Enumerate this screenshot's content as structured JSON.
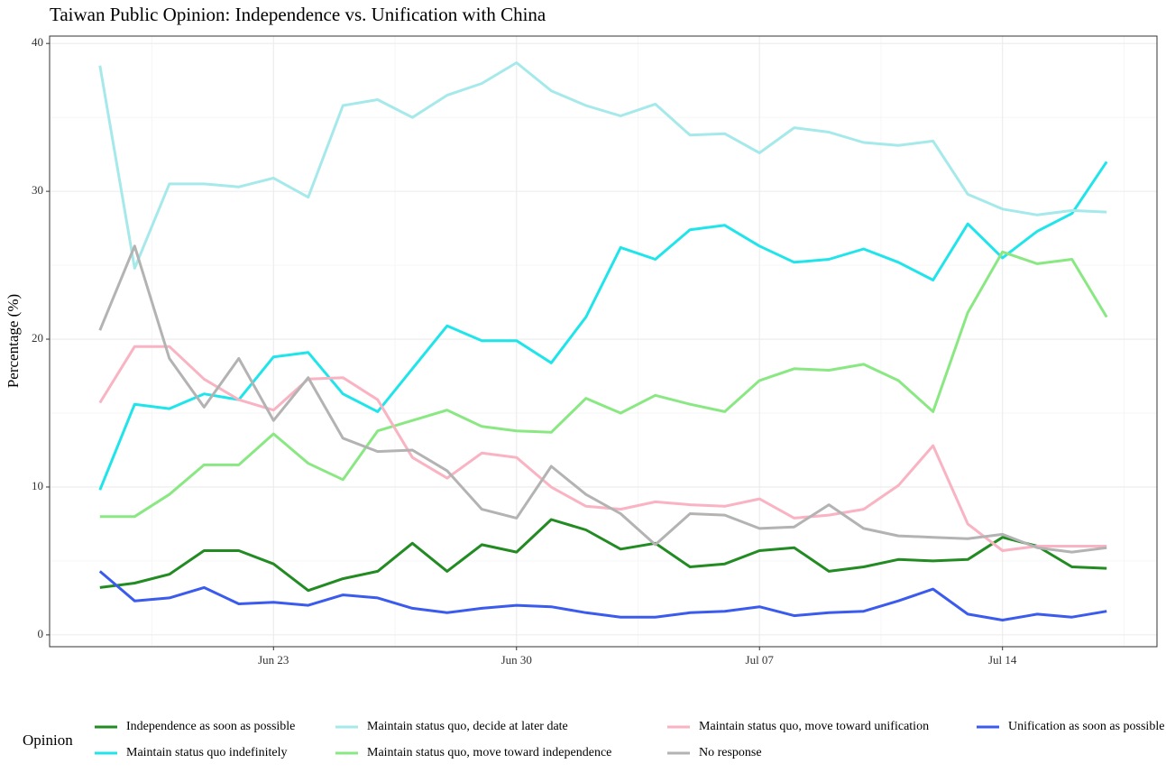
{
  "chart_data": {
    "type": "line",
    "title": "Taiwan Public Opinion: Independence vs. Unification with China",
    "ylabel": "Percentage (%)",
    "legend_title": "Opinion",
    "legend": "bottom",
    "grid": true,
    "x": [
      "Jun 18",
      "Jun 19",
      "Jun 20",
      "Jun 21",
      "Jun 22",
      "Jun 23",
      "Jun 24",
      "Jun 25",
      "Jun 26",
      "Jun 27",
      "Jun 28",
      "Jun 29",
      "Jun 30",
      "Jul 01",
      "Jul 02",
      "Jul 03",
      "Jul 04",
      "Jul 05",
      "Jul 06",
      "Jul 07",
      "Jul 08",
      "Jul 09",
      "Jul 10",
      "Jul 11",
      "Jul 12",
      "Jul 13",
      "Jul 14",
      "Jul 15",
      "Jul 16",
      "Jul 17"
    ],
    "xticks": [
      "Jun 23",
      "Jun 30",
      "Jul 07",
      "Jul 14"
    ],
    "ylim": [
      -0.8,
      40.5
    ],
    "yticks": [
      0,
      10,
      20,
      30,
      40
    ],
    "series": [
      {
        "name": "Independence as soon as possible",
        "color": "#228B22",
        "values": [
          3.2,
          3.5,
          4.1,
          5.7,
          5.7,
          4.8,
          3.0,
          3.8,
          4.3,
          6.2,
          4.3,
          6.1,
          5.6,
          7.8,
          7.1,
          5.8,
          6.2,
          4.6,
          4.8,
          5.7,
          5.9,
          4.3,
          4.6,
          5.1,
          5.0,
          5.1,
          6.6,
          6.0,
          4.6,
          4.5
        ]
      },
      {
        "name": "Maintain status quo indefinitely",
        "color": "#1FE5EB",
        "values": [
          9.8,
          15.6,
          15.3,
          16.3,
          15.9,
          18.8,
          19.1,
          16.3,
          15.1,
          18.0,
          20.9,
          19.9,
          19.9,
          18.4,
          21.5,
          26.2,
          25.4,
          27.4,
          27.7,
          26.3,
          25.2,
          25.4,
          26.1,
          25.2,
          24.0,
          27.8,
          25.5,
          27.3,
          28.5,
          32.0
        ]
      },
      {
        "name": "Maintain status quo, decide at later date",
        "color": "#A6E9EA",
        "values": [
          38.5,
          24.8,
          30.5,
          30.5,
          30.3,
          30.9,
          29.6,
          35.8,
          36.2,
          35.0,
          36.5,
          37.3,
          38.7,
          36.8,
          35.8,
          35.1,
          35.9,
          33.8,
          33.9,
          32.6,
          34.3,
          34.0,
          33.3,
          33.1,
          33.4,
          29.8,
          28.8,
          28.4,
          28.7,
          28.6
        ]
      },
      {
        "name": "Maintain status quo, move toward independence",
        "color": "#8AE883",
        "values": [
          8.0,
          8.0,
          9.5,
          11.5,
          11.5,
          13.6,
          11.6,
          10.5,
          13.8,
          14.5,
          15.2,
          14.1,
          13.8,
          13.7,
          16.0,
          15.0,
          16.2,
          15.6,
          15.1,
          17.2,
          18.0,
          17.9,
          18.3,
          17.2,
          15.1,
          21.8,
          25.9,
          25.1,
          25.4,
          21.5
        ]
      },
      {
        "name": "Maintain status quo, move toward unification",
        "color": "#F9B3C2",
        "values": [
          15.7,
          19.5,
          19.5,
          17.3,
          15.9,
          15.2,
          17.3,
          17.4,
          15.9,
          12.0,
          10.6,
          12.3,
          12.0,
          10.0,
          8.7,
          8.5,
          9.0,
          8.8,
          8.7,
          9.2,
          7.9,
          8.1,
          8.5,
          10.1,
          12.8,
          7.5,
          5.7,
          6.0,
          6.0,
          6.0
        ]
      },
      {
        "name": "No response",
        "color": "#B3B3B3",
        "values": [
          20.6,
          26.3,
          18.7,
          15.4,
          18.7,
          14.5,
          17.4,
          13.3,
          12.4,
          12.5,
          11.1,
          8.5,
          7.9,
          11.4,
          9.5,
          8.2,
          6.1,
          8.2,
          8.1,
          7.2,
          7.3,
          8.8,
          7.2,
          6.7,
          6.6,
          6.5,
          6.8,
          5.9,
          5.6,
          5.9
        ]
      },
      {
        "name": "Unification as soon as possible",
        "color": "#3A5BEE",
        "values": [
          4.3,
          2.3,
          2.5,
          3.2,
          2.1,
          2.2,
          2.0,
          2.7,
          2.5,
          1.8,
          1.5,
          1.8,
          2.0,
          1.9,
          1.5,
          1.2,
          1.2,
          1.5,
          1.6,
          1.9,
          1.3,
          1.5,
          1.6,
          2.3,
          3.1,
          1.4,
          1.0,
          1.4,
          1.2,
          1.6
        ]
      }
    ]
  }
}
